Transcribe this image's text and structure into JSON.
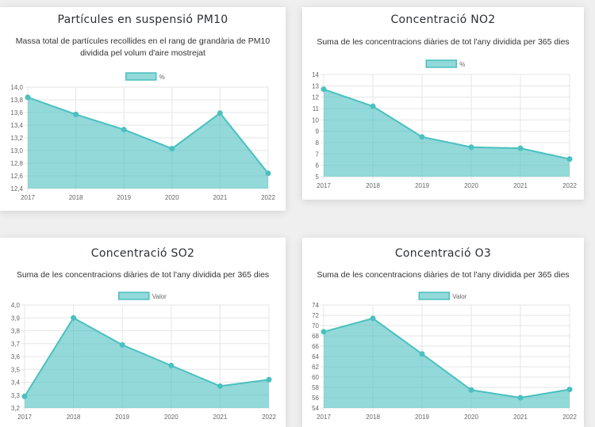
{
  "theme": {
    "line_color": "#4bc0c0",
    "fill_color": "rgba(75,192,192,0.6)",
    "grid_color": "#e6e6e6"
  },
  "chart_data": [
    {
      "type": "area",
      "title": "Partícules en suspensió PM10",
      "subtitle": "Massa total de partícules recollides en el rang de grandària de PM10 dividida pel volum d'aire mostrejat",
      "legend": {
        "label": "%",
        "position": "top"
      },
      "categories": [
        "2017",
        "2018",
        "2019",
        "2020",
        "2021",
        "2022"
      ],
      "series": [
        {
          "name": "%",
          "values": [
            13.84,
            13.57,
            13.33,
            13.03,
            13.59,
            12.64
          ]
        }
      ],
      "ylim": [
        12.4,
        14.0
      ],
      "yticks": [
        "14,0",
        "13,8",
        "13,6",
        "13,4",
        "13,2",
        "13,0",
        "12,8",
        "12,6",
        "12,4"
      ],
      "ytick_values": [
        14.0,
        13.8,
        13.6,
        13.4,
        13.2,
        13.0,
        12.8,
        12.6,
        12.4
      ],
      "grid": true,
      "xlabel": "",
      "ylabel": ""
    },
    {
      "type": "area",
      "title": "Concentració NO2",
      "subtitle": "Suma de les concentracions diàries de tot l'any dividida per 365 dies",
      "legend": {
        "label": "%",
        "position": "top"
      },
      "categories": [
        "2017",
        "2018",
        "2019",
        "2020",
        "2021",
        "2022"
      ],
      "series": [
        {
          "name": "%",
          "values": [
            12.7,
            11.2,
            8.5,
            7.6,
            7.5,
            6.55
          ]
        }
      ],
      "ylim": [
        5,
        14
      ],
      "yticks": [
        "14",
        "13",
        "12",
        "11",
        "10",
        "9",
        "8",
        "7",
        "6",
        "5"
      ],
      "ytick_values": [
        14,
        13,
        12,
        11,
        10,
        9,
        8,
        7,
        6,
        5
      ],
      "grid": true,
      "xlabel": "",
      "ylabel": ""
    },
    {
      "type": "area",
      "title": "Concentració SO2",
      "subtitle": "Suma de les concentracions diàries de tot l'any dividida per 365 dies",
      "legend": {
        "label": "Valor",
        "position": "top"
      },
      "categories": [
        "2017",
        "2018",
        "2019",
        "2020",
        "2021",
        "2022"
      ],
      "series": [
        {
          "name": "Valor",
          "values": [
            3.29,
            3.9,
            3.69,
            3.53,
            3.37,
            3.42
          ]
        }
      ],
      "ylim": [
        3.2,
        4.0
      ],
      "yticks": [
        "4,0",
        "3,9",
        "3,8",
        "3,7",
        "3,6",
        "3,5",
        "3,4",
        "3,3",
        "3,2"
      ],
      "ytick_values": [
        4.0,
        3.9,
        3.8,
        3.7,
        3.6,
        3.5,
        3.4,
        3.3,
        3.2
      ],
      "grid": true,
      "xlabel": "",
      "ylabel": ""
    },
    {
      "type": "area",
      "title": "Concentració O3",
      "subtitle": "Suma de les concentracions diàries de tot l'any dividida per 365 dies",
      "legend": {
        "label": "Valor",
        "position": "top"
      },
      "categories": [
        "2017",
        "2018",
        "2019",
        "2020",
        "2021",
        "2022"
      ],
      "series": [
        {
          "name": "Valor",
          "values": [
            68.8,
            71.4,
            64.5,
            57.5,
            56.0,
            57.6
          ]
        }
      ],
      "ylim": [
        54,
        74
      ],
      "yticks": [
        "74",
        "72",
        "70",
        "68",
        "66",
        "64",
        "62",
        "60",
        "58",
        "56",
        "54"
      ],
      "ytick_values": [
        74,
        72,
        70,
        68,
        66,
        64,
        62,
        60,
        58,
        56,
        54
      ],
      "grid": true,
      "xlabel": "",
      "ylabel": ""
    }
  ]
}
